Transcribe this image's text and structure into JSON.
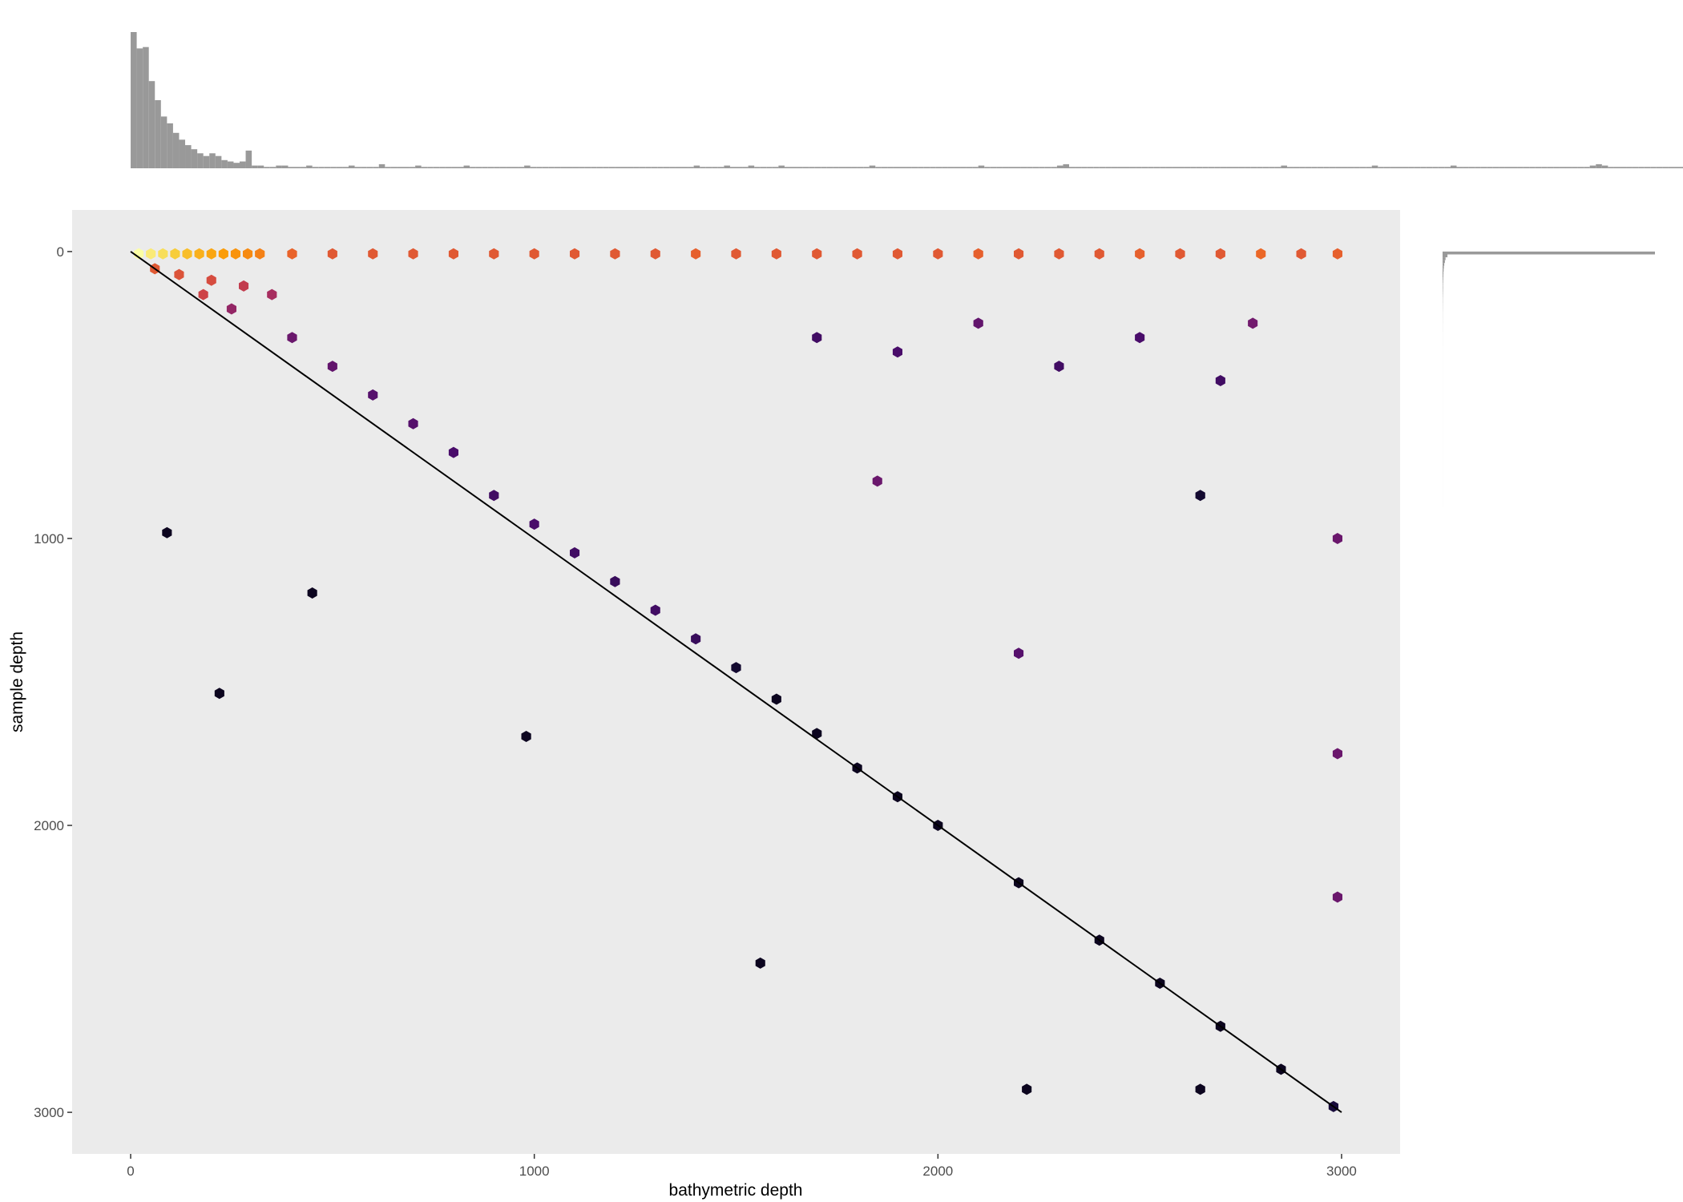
{
  "chart_data": {
    "type": "heatmap",
    "subtype": "hexbin with marginal histograms",
    "title": "",
    "xlabel": "bathymetric depth",
    "ylabel": "sample depth",
    "xlim": [
      -145,
      3145
    ],
    "ylim": [
      3145,
      -145
    ],
    "y_reversed": true,
    "x_ticks": [
      0,
      1000,
      2000,
      3000
    ],
    "y_ticks": [
      0,
      1000,
      2000,
      3000
    ],
    "grid": false,
    "panel_background": "#ebebeb",
    "colormap": "inferno",
    "colormap_stops": [
      "#000004",
      "#1b0c41",
      "#4a0c6b",
      "#781c6d",
      "#a52c60",
      "#cf4446",
      "#ed6925",
      "#fb9b06",
      "#f7d13d",
      "#fcffa4"
    ],
    "reference_line": {
      "type": "identity",
      "from": [
        0,
        0
      ],
      "to": [
        3000,
        3000
      ],
      "color": "#000000"
    },
    "top_histogram": {
      "variable": "bathymetric depth",
      "bin_width": 15,
      "color": "#999999",
      "counts": [
        100,
        88,
        89,
        64,
        50,
        38,
        33,
        26,
        21,
        17,
        14,
        11,
        9,
        11,
        9,
        6,
        5,
        4,
        5,
        13,
        2,
        2,
        1,
        1,
        2,
        2,
        1,
        1,
        1,
        2,
        1,
        1,
        1,
        1,
        1,
        1,
        2,
        1,
        1,
        1,
        1,
        3,
        1,
        1,
        1,
        1,
        1,
        2,
        1,
        1,
        1,
        1,
        1,
        1,
        1,
        2,
        1,
        1,
        1,
        1,
        1,
        1,
        1,
        1,
        1,
        2,
        1,
        1,
        1,
        1,
        1,
        1,
        1,
        1,
        1,
        1,
        1,
        1,
        1,
        1,
        1,
        1,
        1,
        1,
        1,
        1,
        1,
        1,
        1,
        1,
        1,
        1,
        1,
        2,
        1,
        1,
        1,
        1,
        2,
        1,
        1,
        1,
        2,
        1,
        1,
        1,
        1,
        2,
        1,
        1,
        1,
        1,
        1,
        1,
        1,
        1,
        1,
        1,
        1,
        1,
        1,
        1,
        2,
        1,
        1,
        1,
        1,
        1,
        1,
        1,
        1,
        1,
        1,
        1,
        1,
        1,
        1,
        1,
        1,
        1,
        2,
        1,
        1,
        1,
        1,
        1,
        1,
        1,
        1,
        1,
        1,
        1,
        1,
        2,
        3,
        1,
        1,
        1,
        1,
        1,
        1,
        1,
        1,
        1,
        1,
        1,
        1,
        1,
        1,
        1,
        1,
        1,
        1,
        1,
        1,
        1,
        1,
        1,
        1,
        1,
        1,
        1,
        1,
        1,
        1,
        1,
        1,
        1,
        1,
        1,
        2,
        1,
        1,
        1,
        1,
        1,
        1,
        1,
        1,
        1,
        1,
        1,
        1,
        1,
        1,
        2,
        1,
        1,
        1,
        1,
        1,
        1,
        1,
        1,
        1,
        1,
        1,
        1,
        2,
        1,
        1,
        1,
        1,
        1,
        1,
        1,
        1,
        1,
        1,
        1,
        1,
        1,
        1,
        1,
        1,
        1,
        1,
        1,
        1,
        1,
        1,
        2,
        3,
        2,
        1,
        1,
        1,
        1,
        1,
        1,
        1,
        1,
        1,
        1,
        1,
        1,
        1,
        1,
        1,
        1,
        1,
        1,
        1,
        1,
        1,
        1,
        1,
        1,
        1,
        1,
        1,
        1,
        1,
        1,
        2,
        1,
        1,
        1,
        1,
        1,
        1,
        1,
        1,
        1,
        1,
        1,
        1,
        1,
        1,
        1,
        1,
        1,
        1,
        1,
        1,
        1,
        1,
        1,
        1,
        1,
        1,
        2,
        2,
        1,
        1,
        1,
        1,
        1,
        1,
        1,
        1
      ]
    },
    "right_histogram": {
      "variable": "sample depth",
      "bin_width": 10,
      "color": "#999999",
      "counts": [
        100,
        2.3,
        1.4,
        1.1,
        0.8,
        0.6,
        0.5,
        0.4,
        0.35,
        0.3,
        0.25,
        0.2,
        0.2,
        0.18,
        0.15,
        0.12,
        0.1,
        0.1,
        0.08,
        0.07,
        0.06,
        0.05,
        0.05,
        0.04,
        0.04,
        0.03,
        0.03,
        0.03,
        0.02,
        0.02,
        0.02,
        0.02,
        0.02,
        0.01,
        0.01,
        0.01,
        0.01,
        0.01,
        0.01,
        0.01,
        0.01,
        0.01,
        0.01,
        0.01,
        0.01,
        0.01,
        0.01,
        0.01,
        0.01,
        0.01,
        0.01,
        0.01,
        0.01,
        0.01,
        0.01,
        0.01,
        0.01,
        0.01,
        0.01,
        0.01,
        0.01,
        0.01,
        0.01,
        0.01,
        0.01,
        0.01,
        0.01,
        0.01,
        0.01,
        0.01,
        0.01,
        0.01,
        0.01,
        0.01,
        0.01,
        0.01,
        0.01,
        0.01,
        0.01,
        0.01,
        0.01,
        0.01,
        0.01,
        0.01,
        0.01,
        0.01,
        0.01,
        0.01,
        0.01
      ]
    },
    "hex_bins": [
      {
        "x": 20,
        "y": 8,
        "level": 1.0
      },
      {
        "x": 50,
        "y": 8,
        "level": 0.95
      },
      {
        "x": 80,
        "y": 8,
        "level": 0.92
      },
      {
        "x": 110,
        "y": 8,
        "level": 0.88
      },
      {
        "x": 140,
        "y": 8,
        "level": 0.85
      },
      {
        "x": 170,
        "y": 8,
        "level": 0.82
      },
      {
        "x": 200,
        "y": 8,
        "level": 0.8
      },
      {
        "x": 230,
        "y": 8,
        "level": 0.78
      },
      {
        "x": 260,
        "y": 8,
        "level": 0.76
      },
      {
        "x": 290,
        "y": 8,
        "level": 0.74
      },
      {
        "x": 320,
        "y": 8,
        "level": 0.72
      },
      {
        "x": 400,
        "y": 8,
        "level": 0.65
      },
      {
        "x": 500,
        "y": 8,
        "level": 0.62
      },
      {
        "x": 600,
        "y": 8,
        "level": 0.62
      },
      {
        "x": 700,
        "y": 8,
        "level": 0.62
      },
      {
        "x": 800,
        "y": 8,
        "level": 0.62
      },
      {
        "x": 900,
        "y": 8,
        "level": 0.62
      },
      {
        "x": 1000,
        "y": 8,
        "level": 0.62
      },
      {
        "x": 1100,
        "y": 8,
        "level": 0.62
      },
      {
        "x": 1200,
        "y": 8,
        "level": 0.62
      },
      {
        "x": 1300,
        "y": 8,
        "level": 0.62
      },
      {
        "x": 1400,
        "y": 8,
        "level": 0.64
      },
      {
        "x": 1500,
        "y": 8,
        "level": 0.62
      },
      {
        "x": 1600,
        "y": 8,
        "level": 0.62
      },
      {
        "x": 1700,
        "y": 8,
        "level": 0.62
      },
      {
        "x": 1800,
        "y": 8,
        "level": 0.62
      },
      {
        "x": 1900,
        "y": 8,
        "level": 0.62
      },
      {
        "x": 2000,
        "y": 8,
        "level": 0.62
      },
      {
        "x": 2100,
        "y": 8,
        "level": 0.64
      },
      {
        "x": 2200,
        "y": 8,
        "level": 0.62
      },
      {
        "x": 2300,
        "y": 8,
        "level": 0.62
      },
      {
        "x": 2400,
        "y": 8,
        "level": 0.62
      },
      {
        "x": 2500,
        "y": 8,
        "level": 0.64
      },
      {
        "x": 2600,
        "y": 8,
        "level": 0.62
      },
      {
        "x": 2700,
        "y": 8,
        "level": 0.62
      },
      {
        "x": 2800,
        "y": 8,
        "level": 0.66
      },
      {
        "x": 2900,
        "y": 8,
        "level": 0.62
      },
      {
        "x": 2990,
        "y": 8,
        "level": 0.64
      },
      {
        "x": 60,
        "y": 60,
        "level": 0.62
      },
      {
        "x": 120,
        "y": 80,
        "level": 0.6
      },
      {
        "x": 200,
        "y": 100,
        "level": 0.58
      },
      {
        "x": 280,
        "y": 120,
        "level": 0.52
      },
      {
        "x": 350,
        "y": 150,
        "level": 0.45
      },
      {
        "x": 180,
        "y": 150,
        "level": 0.55
      },
      {
        "x": 250,
        "y": 200,
        "level": 0.4
      },
      {
        "x": 400,
        "y": 300,
        "level": 0.3
      },
      {
        "x": 500,
        "y": 400,
        "level": 0.28
      },
      {
        "x": 600,
        "y": 500,
        "level": 0.25
      },
      {
        "x": 700,
        "y": 600,
        "level": 0.25
      },
      {
        "x": 800,
        "y": 700,
        "level": 0.22
      },
      {
        "x": 900,
        "y": 850,
        "level": 0.2
      },
      {
        "x": 1000,
        "y": 950,
        "level": 0.22
      },
      {
        "x": 1100,
        "y": 1050,
        "level": 0.2
      },
      {
        "x": 1200,
        "y": 1150,
        "level": 0.18
      },
      {
        "x": 1300,
        "y": 1250,
        "level": 0.2
      },
      {
        "x": 1400,
        "y": 1350,
        "level": 0.18
      },
      {
        "x": 1500,
        "y": 1450,
        "level": 0.08
      },
      {
        "x": 1600,
        "y": 1560,
        "level": 0.05
      },
      {
        "x": 1700,
        "y": 1680,
        "level": 0.05
      },
      {
        "x": 1800,
        "y": 1800,
        "level": 0.05
      },
      {
        "x": 1900,
        "y": 1900,
        "level": 0.05
      },
      {
        "x": 2000,
        "y": 2000,
        "level": 0.05
      },
      {
        "x": 2200,
        "y": 2200,
        "level": 0.05
      },
      {
        "x": 2400,
        "y": 2400,
        "level": 0.05
      },
      {
        "x": 2550,
        "y": 2550,
        "level": 0.05
      },
      {
        "x": 2700,
        "y": 2700,
        "level": 0.05
      },
      {
        "x": 2850,
        "y": 2850,
        "level": 0.05
      },
      {
        "x": 2980,
        "y": 2980,
        "level": 0.1
      },
      {
        "x": 1700,
        "y": 300,
        "level": 0.2
      },
      {
        "x": 1900,
        "y": 350,
        "level": 0.22
      },
      {
        "x": 2100,
        "y": 250,
        "level": 0.28
      },
      {
        "x": 2300,
        "y": 400,
        "level": 0.2
      },
      {
        "x": 2500,
        "y": 300,
        "level": 0.22
      },
      {
        "x": 2700,
        "y": 450,
        "level": 0.2
      },
      {
        "x": 2780,
        "y": 250,
        "level": 0.32
      },
      {
        "x": 1850,
        "y": 800,
        "level": 0.3
      },
      {
        "x": 2200,
        "y": 1400,
        "level": 0.25
      },
      {
        "x": 2650,
        "y": 850,
        "level": 0.08
      },
      {
        "x": 2990,
        "y": 1000,
        "level": 0.3
      },
      {
        "x": 2990,
        "y": 1750,
        "level": 0.3
      },
      {
        "x": 2990,
        "y": 2250,
        "level": 0.3
      },
      {
        "x": 90,
        "y": 980,
        "level": 0.05
      },
      {
        "x": 450,
        "y": 1190,
        "level": 0.05
      },
      {
        "x": 220,
        "y": 1540,
        "level": 0.05
      },
      {
        "x": 980,
        "y": 1690,
        "level": 0.05
      },
      {
        "x": 1560,
        "y": 2480,
        "level": 0.05
      },
      {
        "x": 2220,
        "y": 2920,
        "level": 0.05
      },
      {
        "x": 2650,
        "y": 2920,
        "level": 0.05
      }
    ]
  }
}
